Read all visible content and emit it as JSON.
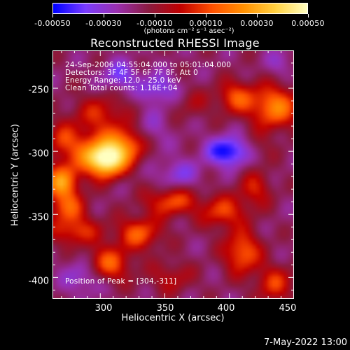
{
  "chart_data": {
    "type": "heatmap",
    "title": "Reconstructed RHESSI Image",
    "xlabel": "Heliocentric X (arcsec)",
    "ylabel": "Heliocentric Y (arcsec)",
    "xlim": [
      263,
      450
    ],
    "ylim": [
      -417,
      -220
    ],
    "x_ticks": [
      "300",
      "350",
      "400",
      "450"
    ],
    "y_ticks": [
      "-250",
      "-300",
      "-350",
      "-400"
    ],
    "colorbar": {
      "range": [
        -0.0005,
        0.0005
      ],
      "tick_labels": [
        "-0.00050",
        "-0.00030",
        "-0.00010",
        "0.00010",
        "0.00030",
        "0.00050"
      ],
      "units": "(photons cm⁻² s⁻¹ asec⁻²)",
      "colormap": [
        "#0000ff",
        "#7a3cff",
        "#9a2fb0",
        "#8a1b40",
        "#c00000",
        "#ff5000",
        "#ff9000",
        "#ffd040",
        "#ffffc0"
      ]
    },
    "annotations": [
      "24-Sep-2006 04:55:04.000 to 05:01:04.000",
      "Detectors: 3F 4F 5F 6F 7F 8F, Att 0",
      "Energy Range: 12.0 - 25.0 keV",
      "Clean     Total counts: 1.16E+04"
    ],
    "peak_label": "Position of Peak = [304,-311]",
    "peak": [
      304,
      -311
    ],
    "blobs": [
      {
        "x": 305,
        "y": -308,
        "amp": 0.00052,
        "sx": 10,
        "sy": 9
      },
      {
        "x": 292,
        "y": -300,
        "amp": 0.0003,
        "sx": 14,
        "sy": 12
      },
      {
        "x": 320,
        "y": -295,
        "amp": 0.00036,
        "sx": 12,
        "sy": 10
      },
      {
        "x": 300,
        "y": -270,
        "amp": 0.0002,
        "sx": 15,
        "sy": 10
      },
      {
        "x": 270,
        "y": -325,
        "amp": 0.00042,
        "sx": 9,
        "sy": 10
      },
      {
        "x": 275,
        "y": -345,
        "amp": 0.00025,
        "sx": 10,
        "sy": 8
      },
      {
        "x": 270,
        "y": -290,
        "amp": 0.00018,
        "sx": 8,
        "sy": 10
      },
      {
        "x": 435,
        "y": -265,
        "amp": 0.00038,
        "sx": 13,
        "sy": 12
      },
      {
        "x": 405,
        "y": -257,
        "amp": 0.00028,
        "sx": 10,
        "sy": 9
      },
      {
        "x": 420,
        "y": -298,
        "amp": 0.0001,
        "sx": 10,
        "sy": 8
      },
      {
        "x": 280,
        "y": -363,
        "amp": 0.00025,
        "sx": 14,
        "sy": 8
      },
      {
        "x": 305,
        "y": -390,
        "amp": 0.00035,
        "sx": 12,
        "sy": 10
      },
      {
        "x": 330,
        "y": -365,
        "amp": 0.0003,
        "sx": 12,
        "sy": 9
      },
      {
        "x": 355,
        "y": -340,
        "amp": 0.00028,
        "sx": 14,
        "sy": 8
      },
      {
        "x": 395,
        "y": -348,
        "amp": 0.00026,
        "sx": 12,
        "sy": 9
      },
      {
        "x": 420,
        "y": -330,
        "amp": 0.0002,
        "sx": 9,
        "sy": 10
      },
      {
        "x": 410,
        "y": -380,
        "amp": 0.00032,
        "sx": 10,
        "sy": 12
      },
      {
        "x": 435,
        "y": -405,
        "amp": 0.00024,
        "sx": 10,
        "sy": 10
      },
      {
        "x": 355,
        "y": -400,
        "amp": 0.00015,
        "sx": 12,
        "sy": 9
      },
      {
        "x": 372,
        "y": -262,
        "amp": 0.0001,
        "sx": 10,
        "sy": 9
      },
      {
        "x": 400,
        "y": -300,
        "amp": -0.00035,
        "sx": 12,
        "sy": 8
      },
      {
        "x": 345,
        "y": -250,
        "amp": -0.0002,
        "sx": 10,
        "sy": 8
      },
      {
        "x": 315,
        "y": -240,
        "amp": -0.0002,
        "sx": 9,
        "sy": 8
      },
      {
        "x": 290,
        "y": -398,
        "amp": -0.0002,
        "sx": 12,
        "sy": 10
      },
      {
        "x": 360,
        "y": -318,
        "amp": -0.00015,
        "sx": 12,
        "sy": 8
      },
      {
        "x": 338,
        "y": -285,
        "amp": -0.00012,
        "sx": 10,
        "sy": 12
      },
      {
        "x": 440,
        "y": -230,
        "amp": -0.0001,
        "sx": 8,
        "sy": 8
      }
    ]
  },
  "footer": {
    "timestamp": "7-May-2022 13:00"
  }
}
